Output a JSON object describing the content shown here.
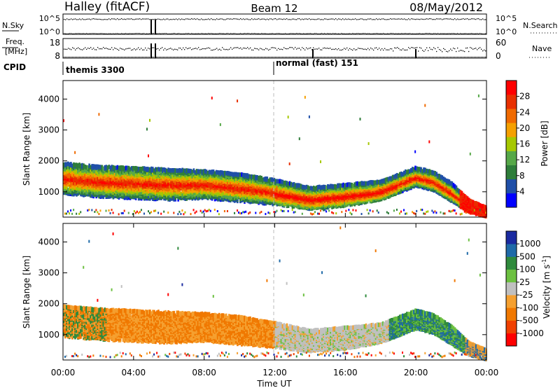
{
  "header": {
    "radar": "Halley (fitACF)",
    "beam": "Beam 12",
    "date": "08/May/2012"
  },
  "sky_panel": {
    "left_label": "N.Sky",
    "right_label": "N.Search",
    "left_ticks": [
      "10^5",
      "10^0"
    ],
    "right_ticks": [
      "10^5",
      "10^0"
    ]
  },
  "freq_panel": {
    "left_label_line1": "Freq.",
    "left_label_line2": "[MHz]",
    "right_label": "Nave",
    "left_ticks": [
      "18",
      "8"
    ],
    "right_ticks": [
      "60",
      "0"
    ]
  },
  "cpid": {
    "label": "CPID",
    "segments": [
      {
        "name": "themis 3300",
        "start_hour": 0
      },
      {
        "name": "normal (fast) 151",
        "start_hour": 12
      }
    ]
  },
  "colors": {
    "power": [
      "#0000ff",
      "#1f4fa8",
      "#2e7d3a",
      "#56a848",
      "#a6c800",
      "#f5a000",
      "#f06a00",
      "#e83000",
      "#ff0000"
    ],
    "velocity": [
      "#ff0000",
      "#f04000",
      "#f07800",
      "#f5a030",
      "#c0c0c0",
      "#6cc040",
      "#2f8a3c",
      "#1f6aa8",
      "#1a2aa0"
    ],
    "dashline": "#bbbbbb"
  },
  "chart_data": [
    {
      "type": "heatmap",
      "title": "Power",
      "xlabel": "Time UT",
      "ylabel": "Slant Range [km]",
      "colorbar_label": "Power [dB]",
      "colorbar_ticks": [
        "28",
        "24",
        "20",
        "16",
        "12",
        "8",
        "4"
      ],
      "colorbar_range": [
        0,
        32
      ],
      "xlim": [
        0,
        24
      ],
      "ylim": [
        180,
        4600
      ],
      "x_ticks": [
        "00:00",
        "04:00",
        "08:00",
        "12:00",
        "16:00",
        "20:00",
        "00:00"
      ],
      "y_ticks": [
        "1000",
        "2000",
        "3000",
        "4000"
      ],
      "band": {
        "x_hours": [
          0,
          2,
          4,
          6,
          8,
          10,
          12,
          14,
          16,
          18,
          20,
          21,
          22,
          23,
          24
        ],
        "center_km": [
          1450,
          1350,
          1300,
          1250,
          1250,
          1150,
          1000,
          800,
          900,
          1050,
          1500,
          1350,
          1000,
          550,
          350
        ],
        "width_km": [
          500,
          500,
          500,
          500,
          450,
          450,
          400,
          350,
          350,
          300,
          300,
          300,
          300,
          200,
          150
        ]
      }
    },
    {
      "type": "heatmap",
      "title": "Velocity",
      "xlabel": "Time UT",
      "ylabel": "Slant Range [km]",
      "colorbar_label": "Velocity [m s-1]",
      "colorbar_ticks": [
        "1000",
        "500",
        "100",
        "25",
        "-25",
        "-100",
        "-500",
        "-1000"
      ],
      "xlim": [
        0,
        24
      ],
      "ylim": [
        180,
        4600
      ],
      "x_ticks": [
        "00:00",
        "04:00",
        "08:00",
        "12:00",
        "16:00",
        "20:00",
        "00:00"
      ],
      "y_ticks": [
        "1000",
        "2000",
        "3000",
        "4000"
      ],
      "band": {
        "x_hours": [
          0,
          2,
          4,
          6,
          8,
          10,
          12,
          14,
          16,
          18,
          20,
          21,
          22,
          23,
          24
        ],
        "center_km": [
          1450,
          1350,
          1300,
          1250,
          1250,
          1150,
          1000,
          800,
          900,
          1050,
          1500,
          1350,
          1000,
          550,
          350
        ],
        "width_km": [
          500,
          500,
          500,
          500,
          450,
          450,
          400,
          350,
          350,
          300,
          300,
          300,
          300,
          200,
          150
        ]
      }
    }
  ]
}
